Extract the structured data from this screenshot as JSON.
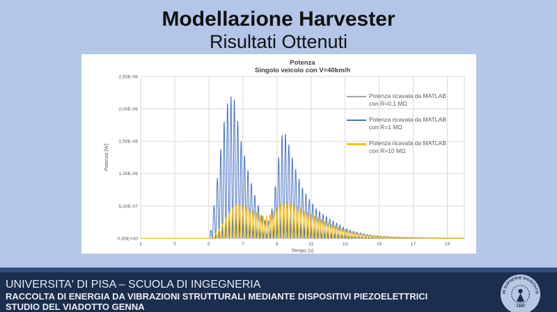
{
  "slide": {
    "title": "Modellazione Harvester",
    "subtitle": "Risultati Ottenuti",
    "background_color": "#b3c6e7"
  },
  "chart_data": {
    "type": "line",
    "title": "Potenza",
    "subtitle": "Singolo veicolo con V=40km/h",
    "xlabel": "Tempo (s)",
    "ylabel": "Potenza [W]",
    "xlim": [
      1,
      20
    ],
    "ylim": [
      0,
      2.5e-06
    ],
    "x_ticks": [
      1,
      3,
      5,
      7,
      9,
      11,
      13,
      15,
      17,
      19
    ],
    "y_ticks": [
      0,
      5e-07,
      1e-06,
      1.5e-06,
      2e-06,
      2.5e-06
    ],
    "y_tick_labels": [
      "0,00E+00",
      "5,00E-07",
      "1,00E-06",
      "1,50E-06",
      "2,00E-06",
      "2,50E-06"
    ],
    "grid": true,
    "legend_position": "right-inside",
    "note": "Rectified oscillating power bursts (~5 Hz spikes). Series described by spike-envelope control points [t seconds, peak W]; signal is envelope * sin^2(pi*(t-phase)/period).",
    "series": [
      {
        "name": "Potenza ricavata da MATLAB con R=0,1 MΩ",
        "label_line1": "Potenza ricavata da MATLAB",
        "label_line2": "con R=0,1 MΩ",
        "color": "#a6a6a6",
        "stroke_width": 0.8,
        "period": 0.2,
        "phase": 5.05,
        "envelope": [
          [
            1,
            0
          ],
          [
            5.1,
            0
          ],
          [
            5.5,
            1.5e-08
          ],
          [
            6.3,
            4e-08
          ],
          [
            7.2,
            3e-08
          ],
          [
            8.4,
            1.5e-08
          ],
          [
            9.4,
            3.5e-08
          ],
          [
            10.5,
            2.5e-08
          ],
          [
            12,
            1.5e-08
          ],
          [
            14,
            8e-09
          ],
          [
            16,
            4e-09
          ],
          [
            20,
            2e-09
          ]
        ]
      },
      {
        "name": "Potenza ricavata da MATLAB con R=1 MΩ",
        "label_line1": "Potenza ricavata da MATLAB",
        "label_line2": "con R=1 MΩ",
        "color": "#4472c4",
        "stroke_width": 1,
        "period": 0.2,
        "phase": 5.0,
        "envelope": [
          [
            1,
            0
          ],
          [
            5.05,
            0
          ],
          [
            5.2,
            3e-07
          ],
          [
            5.4,
            7e-07
          ],
          [
            5.6,
            1.15e-06
          ],
          [
            5.8,
            1.6e-06
          ],
          [
            6.0,
            2e-06
          ],
          [
            6.2,
            2.18e-06
          ],
          [
            6.35,
            2.2e-06
          ],
          [
            6.5,
            2.15e-06
          ],
          [
            6.6,
            1.95e-06
          ],
          [
            6.75,
            1.75e-06
          ],
          [
            6.9,
            1.5e-06
          ],
          [
            7.1,
            1.28e-06
          ],
          [
            7.3,
            1.05e-06
          ],
          [
            7.55,
            8e-07
          ],
          [
            7.8,
            5.8e-07
          ],
          [
            8.1,
            3.5e-07
          ],
          [
            8.45,
            2.2e-07
          ],
          [
            8.7,
            4.5e-07
          ],
          [
            8.9,
            8e-07
          ],
          [
            9.1,
            1.25e-06
          ],
          [
            9.3,
            1.6e-06
          ],
          [
            9.45,
            1.65e-06
          ],
          [
            9.6,
            1.55e-06
          ],
          [
            9.8,
            1.35e-06
          ],
          [
            10.0,
            1.15e-06
          ],
          [
            10.25,
            9.5e-07
          ],
          [
            10.55,
            7.5e-07
          ],
          [
            10.9,
            6e-07
          ],
          [
            11.3,
            4.6e-07
          ],
          [
            11.7,
            3.7e-07
          ],
          [
            12.1,
            3e-07
          ],
          [
            12.5,
            2.4e-07
          ],
          [
            13.0,
            1.6e-07
          ],
          [
            13.5,
            1.1e-07
          ],
          [
            14.0,
            7.5e-08
          ],
          [
            14.5,
            5e-08
          ],
          [
            15.0,
            3.5e-08
          ],
          [
            15.7,
            2.2e-08
          ],
          [
            16.5,
            1.4e-08
          ],
          [
            17.5,
            1e-08
          ],
          [
            19,
            7e-09
          ],
          [
            20,
            6e-09
          ]
        ]
      },
      {
        "name": "Potenza ricavata da MATLAB con R=10 MΩ",
        "label_line1": "Potenza ricavata da MATLAB",
        "label_line2": "con R=10 MΩ",
        "color": "#ffc000",
        "stroke_width": 1.2,
        "period": 0.2,
        "phase": 5.1,
        "envelope": [
          [
            1,
            0
          ],
          [
            5.15,
            0
          ],
          [
            5.4,
            8e-08
          ],
          [
            5.7,
            1.8e-07
          ],
          [
            6.0,
            3.2e-07
          ],
          [
            6.3,
            4.5e-07
          ],
          [
            6.6,
            5.4e-07
          ],
          [
            6.9,
            5.2e-07
          ],
          [
            7.2,
            4.8e-07
          ],
          [
            7.6,
            4.2e-07
          ],
          [
            8.0,
            3.6e-07
          ],
          [
            8.35,
            3.3e-07
          ],
          [
            8.7,
            3.8e-07
          ],
          [
            9.1,
            4.9e-07
          ],
          [
            9.45,
            5.7e-07
          ],
          [
            9.8,
            5.4e-07
          ],
          [
            10.2,
            4.8e-07
          ],
          [
            10.6,
            4.2e-07
          ],
          [
            11.0,
            3.7e-07
          ],
          [
            11.5,
            3e-07
          ],
          [
            12.0,
            2.4e-07
          ],
          [
            12.5,
            1.8e-07
          ],
          [
            13.0,
            1.3e-07
          ],
          [
            13.5,
            9e-08
          ],
          [
            14.0,
            6e-08
          ],
          [
            14.6,
            4e-08
          ],
          [
            15.3,
            2.5e-08
          ],
          [
            16.2,
            1.5e-08
          ],
          [
            17.5,
            1e-08
          ],
          [
            19,
            7e-09
          ],
          [
            20,
            6e-09
          ]
        ]
      }
    ]
  },
  "footer": {
    "line1": "UNIVERSITA' DI PISA – SCUOLA DI INGEGNERIA",
    "line2": "RACCOLTA DI ENERGIA DA VIBRAZIONI STRUTTURALI MEDIANTE DISPOSITIVI PIEZOELETTRICI",
    "line3": "STUDIO DEL VIADOTTO GENNA",
    "strip_color": "#2f4c78",
    "bar_color": "#1c2e4d",
    "logo": {
      "motto": "IN SUPREMÆ DIGNITATIS",
      "year": "· 1343 ·",
      "circle_color": "#b9c8e2",
      "emblem_color": "#1c2e4d"
    }
  }
}
